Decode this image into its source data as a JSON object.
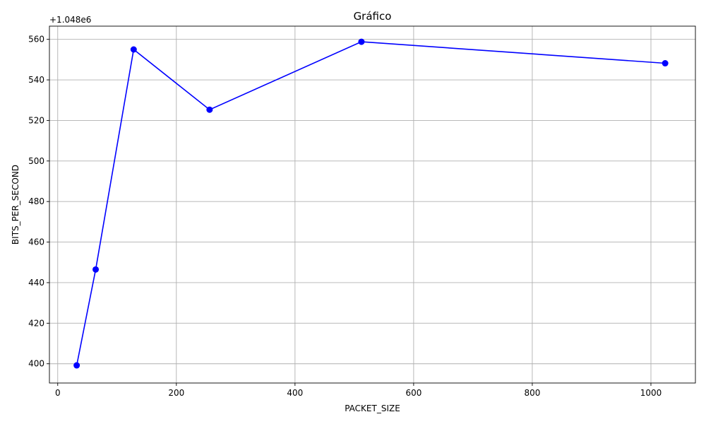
{
  "chart_data": {
    "type": "line",
    "title": "Gráfico",
    "xlabel": "PACKET_SIZE",
    "ylabel": "BITS_PER_SECOND",
    "y_offset_label": "+1.048e6",
    "xlim": [
      -14,
      1075
    ],
    "ylim": [
      390.5,
      566.5
    ],
    "xticks": [
      0,
      200,
      400,
      600,
      800,
      1000
    ],
    "xtick_labels": [
      "0",
      "200",
      "400",
      "600",
      "800",
      "1000"
    ],
    "yticks": [
      400,
      420,
      440,
      460,
      480,
      500,
      520,
      540,
      560
    ],
    "ytick_labels": [
      "400",
      "420",
      "440",
      "460",
      "480",
      "500",
      "520",
      "540",
      "560"
    ],
    "grid": true,
    "series": [
      {
        "color": "#0000ff",
        "marker": "circle",
        "x": [
          32,
          64,
          128,
          256,
          512,
          1024
        ],
        "y": [
          399.2,
          446.5,
          555,
          525.3,
          558.8,
          548.2
        ]
      }
    ]
  }
}
